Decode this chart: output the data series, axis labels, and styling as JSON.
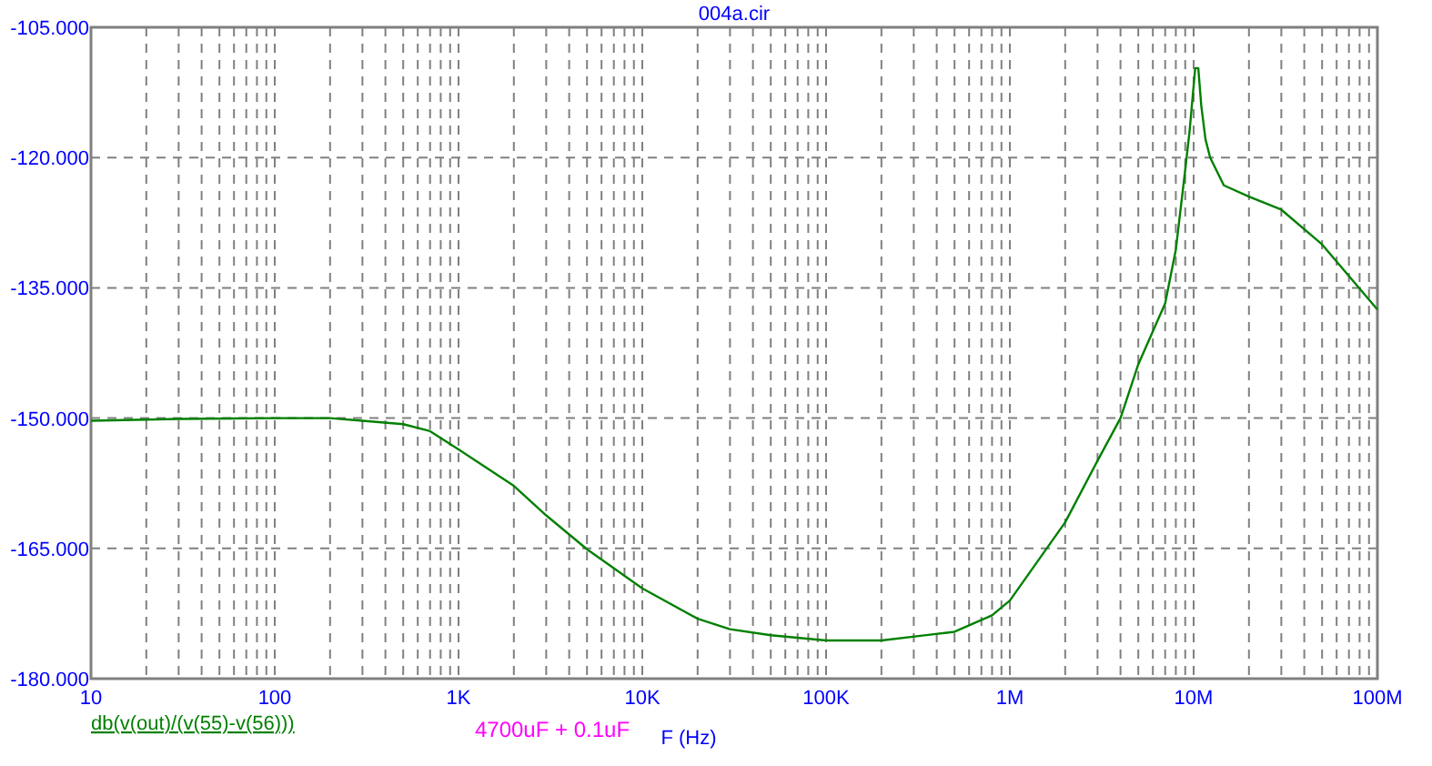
{
  "chart_data": {
    "type": "line",
    "title": "004a.cir",
    "xlabel": "F (Hz)",
    "annotations": [
      "4700uF + 0.1uF"
    ],
    "log": "x",
    "grid": true,
    "legend": "bottom left",
    "line_style": "solid",
    "marker": "none",
    "xlim": [
      10,
      100000000
    ],
    "ylim": [
      -180,
      -105
    ],
    "xticks": [
      10,
      {
        "value": 20,
        "label": null
      },
      {
        "value": 30,
        "label": null
      },
      {
        "value": 40,
        "label": null
      },
      {
        "value": 50,
        "label": null
      },
      {
        "value": 60,
        "label": null
      },
      {
        "value": 70,
        "label": null
      },
      {
        "value": 80,
        "label": null
      },
      {
        "value": 90,
        "label": null
      },
      100,
      {
        "value": 200,
        "label": null
      },
      {
        "value": 300,
        "label": null
      },
      {
        "value": 400,
        "label": null
      },
      {
        "value": 500,
        "label": null
      },
      {
        "value": 600,
        "label": null
      },
      {
        "value": 700,
        "label": null
      },
      {
        "value": 800,
        "label": null
      },
      {
        "value": 900,
        "label": null
      },
      {
        "value": 1000,
        "label": "1K"
      },
      {
        "value": 2000,
        "label": null
      },
      {
        "value": 3000,
        "label": null
      },
      {
        "value": 4000,
        "label": null
      },
      {
        "value": 5000,
        "label": null
      },
      {
        "value": 6000,
        "label": null
      },
      {
        "value": 7000,
        "label": null
      },
      {
        "value": 8000,
        "label": null
      },
      {
        "value": 9000,
        "label": null
      },
      {
        "value": 10000,
        "label": "10K"
      },
      {
        "value": 20000,
        "label": null
      },
      {
        "value": 30000,
        "label": null
      },
      {
        "value": 40000,
        "label": null
      },
      {
        "value": 50000,
        "label": null
      },
      {
        "value": 60000,
        "label": null
      },
      {
        "value": 70000,
        "label": null
      },
      {
        "value": 80000,
        "label": null
      },
      {
        "value": 90000,
        "label": null
      },
      {
        "value": 100000,
        "label": "100K"
      },
      {
        "value": 200000,
        "label": null
      },
      {
        "value": 300000,
        "label": null
      },
      {
        "value": 400000,
        "label": null
      },
      {
        "value": 500000,
        "label": null
      },
      {
        "value": 600000,
        "label": null
      },
      {
        "value": 700000,
        "label": null
      },
      {
        "value": 800000,
        "label": null
      },
      {
        "value": 900000,
        "label": null
      },
      {
        "value": 1000000,
        "label": "1M"
      },
      {
        "value": 2000000,
        "label": null
      },
      {
        "value": 3000000,
        "label": null
      },
      {
        "value": 4000000,
        "label": null
      },
      {
        "value": 5000000,
        "label": null
      },
      {
        "value": 6000000,
        "label": null
      },
      {
        "value": 7000000,
        "label": null
      },
      {
        "value": 8000000,
        "label": null
      },
      {
        "value": 9000000,
        "label": null
      },
      {
        "value": 10000000,
        "label": "10M"
      },
      {
        "value": 20000000,
        "label": null
      },
      {
        "value": 30000000,
        "label": null
      },
      {
        "value": 40000000,
        "label": null
      },
      {
        "value": 50000000,
        "label": null
      },
      {
        "value": 60000000,
        "label": null
      },
      {
        "value": 70000000,
        "label": null
      },
      {
        "value": 80000000,
        "label": null
      },
      {
        "value": 90000000,
        "label": null
      },
      {
        "value": 100000000,
        "label": "100M"
      }
    ],
    "yticks": [
      {
        "value": -180,
        "label": "-180.000"
      },
      {
        "value": -165,
        "label": "-165.000"
      },
      {
        "value": -150,
        "label": "-150.000"
      },
      {
        "value": -135,
        "label": "-135.000"
      },
      {
        "value": -120,
        "label": "-120.000"
      },
      {
        "value": -105,
        "label": "-105.000"
      }
    ],
    "series": [
      {
        "name": "db(v(out)/(v(55)-v(56)))",
        "color": "#008000",
        "x": [
          10,
          30,
          100,
          200,
          300,
          500,
          700,
          1000,
          2000,
          3000,
          5000,
          10000,
          20000,
          30000,
          50000,
          100000,
          200000,
          500000,
          800000,
          1000000,
          2000000,
          3000000,
          4000000,
          5000000,
          7000000,
          8000000,
          9000000,
          9500000,
          10200000,
          10600000,
          11000000,
          11600000,
          12300000,
          14600000,
          20000000,
          30000000,
          50000000,
          100000000
        ],
        "values": [
          -150.3,
          -150.1,
          -150,
          -150,
          -150.3,
          -150.7,
          -151.5,
          -153.6,
          -157.8,
          -161.2,
          -165.1,
          -169.6,
          -173.1,
          -174.3,
          -175,
          -175.6,
          -175.6,
          -174.6,
          -172.7,
          -171,
          -162,
          -154.9,
          -150,
          -143.8,
          -136.8,
          -130.6,
          -121.4,
          -117,
          -109.7,
          -109.7,
          -114,
          -117.9,
          -120,
          -123.2,
          -124.5,
          -126,
          -130,
          -137.5
        ]
      }
    ]
  }
}
